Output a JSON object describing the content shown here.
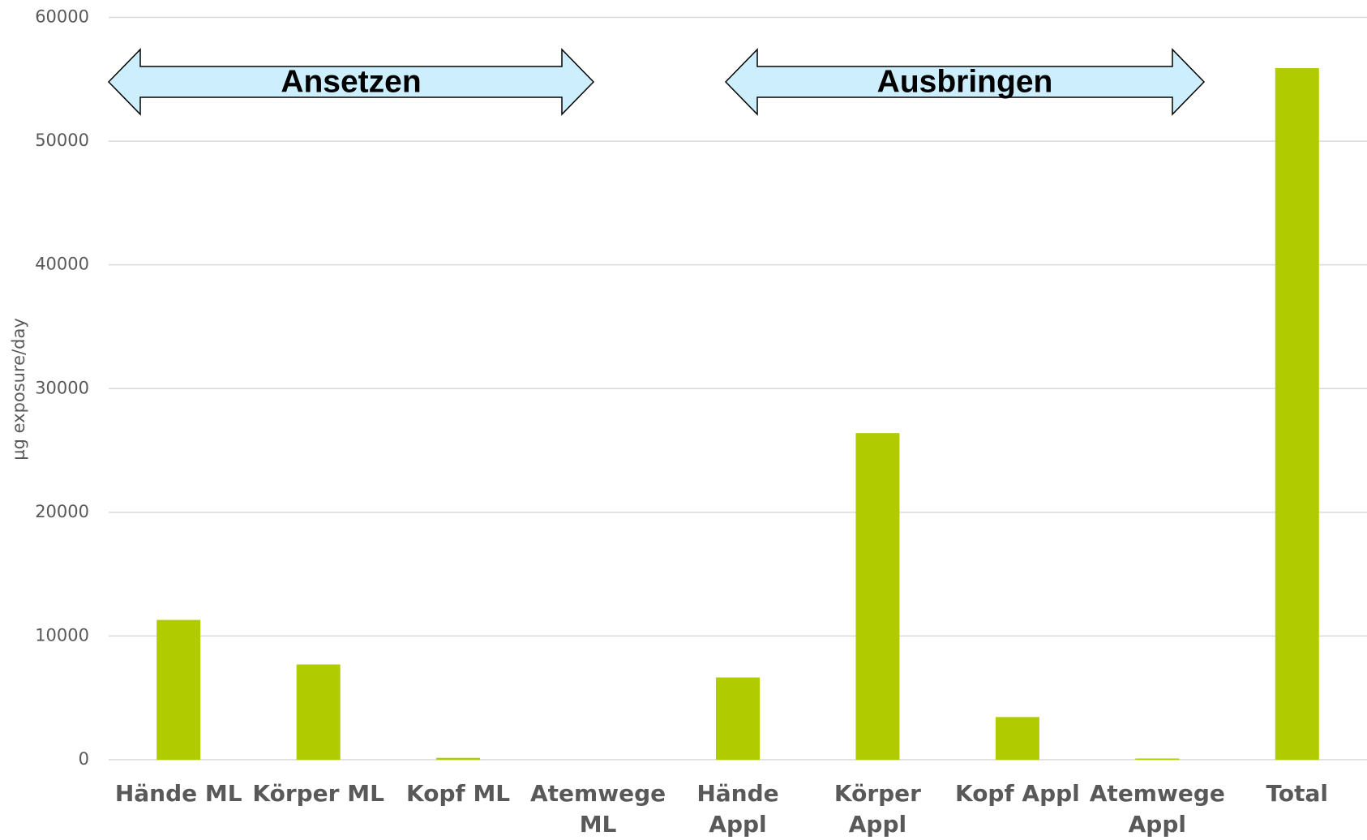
{
  "chart_data": {
    "type": "bar",
    "y_axis_label": "µg exposure/day",
    "categories": [
      "Hände ML",
      "Körper ML",
      "Kopf ML",
      "Atemwege ML",
      "Hände Appl",
      "Körper Appl",
      "Kopf Appl",
      "Atemwege Appl",
      "Total"
    ],
    "values": [
      11300,
      7700,
      150,
      0,
      6650,
      26400,
      3450,
      100,
      55900
    ],
    "color": "#b0cb00",
    "ylim": [
      0,
      60000
    ],
    "yticks": [
      0,
      10000,
      20000,
      30000,
      40000,
      50000,
      60000
    ],
    "grid": true,
    "annotations": [
      "Ansetzen",
      "Ausbringen"
    ]
  }
}
